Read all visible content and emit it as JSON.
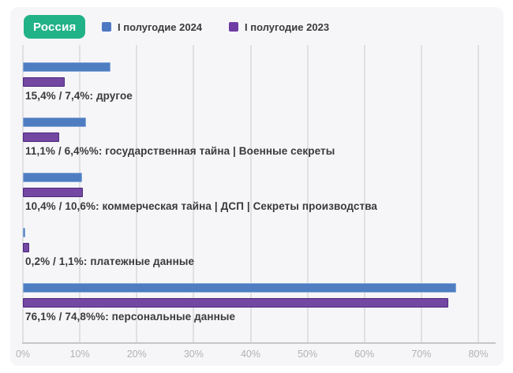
{
  "header": {
    "region_badge": "Россия",
    "legend": [
      {
        "label": "I полугодие 2024",
        "color": "#4d79c2"
      },
      {
        "label": "I полугодие 2023",
        "color": "#6e3ca3"
      }
    ]
  },
  "chart_data": {
    "type": "bar",
    "orientation": "horizontal",
    "title": "Россия",
    "xlabel": "",
    "ylabel": "",
    "xlim": [
      0,
      80
    ],
    "x_ticks": [
      "0%",
      "10%",
      "20%",
      "30%",
      "40%",
      "50%",
      "60%",
      "70%",
      "80%"
    ],
    "grid": true,
    "legend_position": "top",
    "categories": [
      "другое",
      "государственная тайна | Военные секреты",
      "коммерческая тайна | ДСП | Секреты производства",
      "платежные данные",
      "персональные данные"
    ],
    "series": [
      {
        "name": "I полугодие 2024",
        "color": "#4e7dc1",
        "border_color": "#85a8d8",
        "values": [
          15.4,
          11.1,
          10.4,
          0.2,
          76.1
        ]
      },
      {
        "name": "I полугодие 2023",
        "color": "#7347a2",
        "border_color": "#4d2a7c",
        "values": [
          7.4,
          6.4,
          10.6,
          1.1,
          74.8
        ]
      }
    ],
    "row_labels": [
      "15,4% / 7,4%:  другое",
      "11,1% / 6,4%%:  государственная тайна | Военные секреты",
      "10,4% / 10,6%:  коммерческая тайна | ДСП | Секреты производства",
      "0,2% / 1,1%:  платежные данные",
      "76,1% / 74,8%%:  персональные данные"
    ]
  },
  "colors": {
    "badge_background": "#22b288",
    "card_background": "#f6f6f8",
    "gridline": "#e0e0e3",
    "axis_line": "#c6c6ca",
    "tick_text": "#b2b2b6",
    "label_text": "#3a3a3c"
  }
}
